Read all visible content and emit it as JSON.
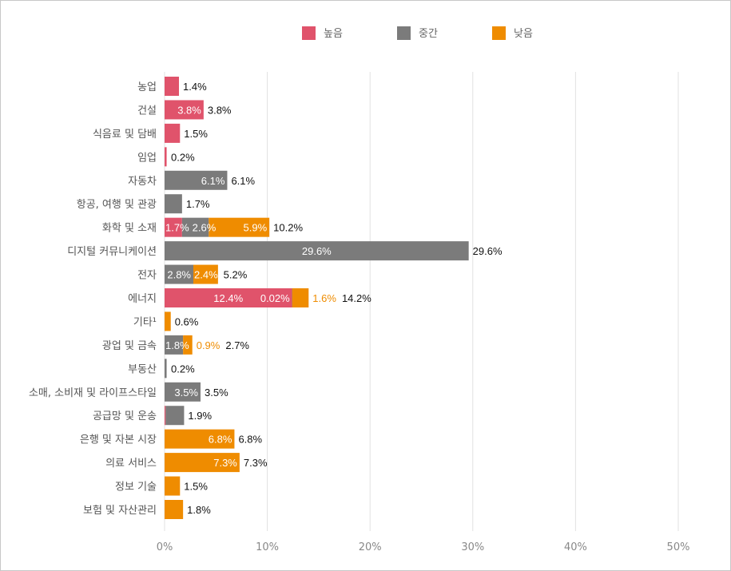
{
  "chart_data": {
    "type": "bar",
    "orientation": "horizontal",
    "stacked": true,
    "legend_position": "top",
    "grid": true,
    "xlim": [
      0,
      50
    ],
    "x_ticks": [
      "0%",
      "10%",
      "20%",
      "30%",
      "40%",
      "50%"
    ],
    "series": [
      {
        "name": "높음",
        "color": "#e0536b"
      },
      {
        "name": "중간",
        "color": "#7b7b7b"
      },
      {
        "name": "낮음",
        "color": "#ef8c00"
      }
    ],
    "categories": [
      {
        "label": "농업",
        "values": [
          1.4,
          0,
          0
        ],
        "segment_labels": [
          null,
          null,
          null
        ],
        "total_label": "1.4%"
      },
      {
        "label": "건설",
        "values": [
          3.8,
          0,
          0
        ],
        "segment_labels": [
          "3.8%",
          null,
          null
        ],
        "total_label": "3.8%"
      },
      {
        "label": "식음료 및 담배",
        "values": [
          1.5,
          0,
          0
        ],
        "segment_labels": [
          null,
          null,
          null
        ],
        "total_label": "1.5%"
      },
      {
        "label": "임업",
        "values": [
          0.2,
          0,
          0
        ],
        "segment_labels": [
          null,
          null,
          null
        ],
        "total_label": "0.2%"
      },
      {
        "label": "자동차",
        "values": [
          0,
          6.1,
          0
        ],
        "segment_labels": [
          null,
          "6.1%",
          null
        ],
        "total_label": "6.1%"
      },
      {
        "label": "항공, 여행 및 관광",
        "values": [
          0,
          1.7,
          0
        ],
        "segment_labels": [
          null,
          null,
          null
        ],
        "total_label": "1.7%"
      },
      {
        "label": "화학 및 소재",
        "values": [
          1.7,
          2.6,
          5.9
        ],
        "segment_labels": [
          "1.7%",
          "2.6%",
          "5.9%"
        ],
        "total_label": "10.2%"
      },
      {
        "label": "디지털 커뮤니케이션",
        "values": [
          0,
          29.6,
          0
        ],
        "segment_labels": [
          null,
          "29.6%",
          null
        ],
        "total_label": "29.6%"
      },
      {
        "label": "전자",
        "values": [
          0,
          2.8,
          2.4
        ],
        "segment_labels": [
          null,
          "2.8%",
          "2.4%"
        ],
        "total_label": "5.2%"
      },
      {
        "label": "에너지",
        "values": [
          12.4,
          0.02,
          1.6
        ],
        "segment_labels": [
          "12.4%",
          "0.02%",
          "1.6%"
        ],
        "outside_segment": 2,
        "total_label": "14.2%"
      },
      {
        "label": "기타¹",
        "values": [
          0,
          0,
          0.6
        ],
        "segment_labels": [
          null,
          null,
          null
        ],
        "total_label": "0.6%"
      },
      {
        "label": "광업 및 금속",
        "values": [
          0,
          1.8,
          0.9
        ],
        "segment_labels": [
          null,
          "1.8%",
          "0.9%"
        ],
        "outside_segment": 2,
        "total_label": "2.7%"
      },
      {
        "label": "부동산",
        "values": [
          0,
          0.2,
          0
        ],
        "segment_labels": [
          null,
          null,
          null
        ],
        "total_label": "0.2%"
      },
      {
        "label": "소매, 소비재 및 라이프스타일",
        "values": [
          0,
          3.5,
          0
        ],
        "segment_labels": [
          null,
          "3.5%",
          null
        ],
        "total_label": "3.5%"
      },
      {
        "label": "공급망 및 운송",
        "values": [
          0.1,
          1.8,
          0
        ],
        "segment_labels": [
          null,
          null,
          null
        ],
        "total_label": "1.9%"
      },
      {
        "label": "은행 및 자본 시장",
        "values": [
          0,
          0,
          6.8
        ],
        "segment_labels": [
          null,
          null,
          "6.8%"
        ],
        "total_label": "6.8%"
      },
      {
        "label": "의료 서비스",
        "values": [
          0,
          0,
          7.3
        ],
        "segment_labels": [
          null,
          null,
          "7.3%"
        ],
        "total_label": "7.3%"
      },
      {
        "label": "정보 기술",
        "values": [
          0,
          0,
          1.5
        ],
        "segment_labels": [
          null,
          null,
          null
        ],
        "total_label": "1.5%"
      },
      {
        "label": "보험 및 자산관리",
        "values": [
          0,
          0,
          1.8
        ],
        "segment_labels": [
          null,
          null,
          null
        ],
        "total_label": "1.8%"
      }
    ]
  }
}
